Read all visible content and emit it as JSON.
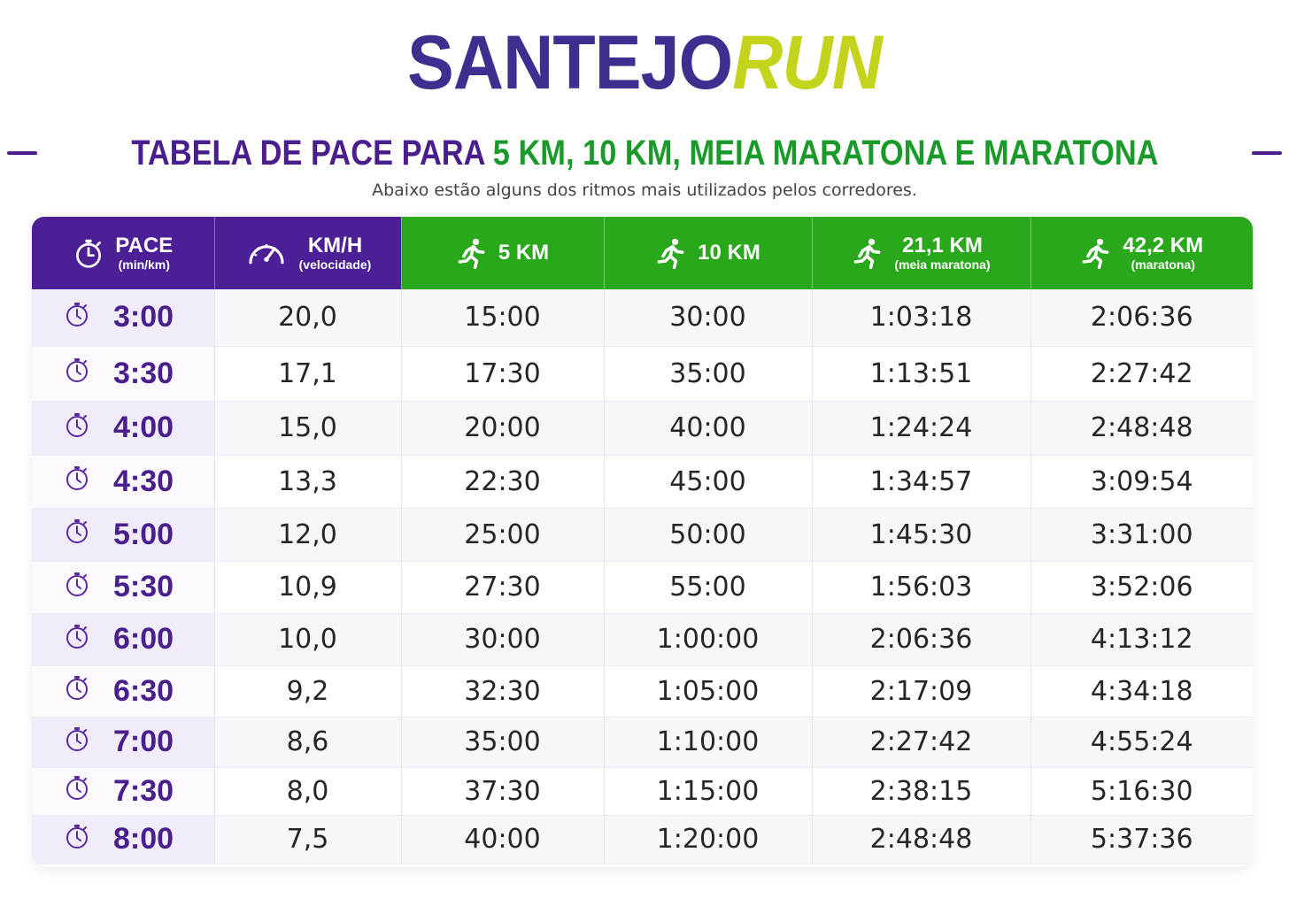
{
  "brand": {
    "part1": "SANTEJO",
    "part2": "RUN",
    "colors": {
      "primary": "#3d2e8f",
      "accent": "#c4d41c"
    }
  },
  "headline": {
    "part1": "TABELA DE PACE PARA ",
    "part2": "5 KM, 10 KM, MEIA MARATONA E MARATONA"
  },
  "subtitle": "Abaixo estão alguns dos ritmos mais utilizados pelos corredores.",
  "table": {
    "headers": [
      {
        "main": "PACE",
        "sub": "(min/km)",
        "icon": "stopwatch-icon"
      },
      {
        "main": "KM/H",
        "sub": "(velocidade)",
        "icon": "speedometer-icon"
      },
      {
        "main": "5 KM",
        "sub": "",
        "icon": "runner-icon"
      },
      {
        "main": "10 KM",
        "sub": "",
        "icon": "runner-icon"
      },
      {
        "main": "21,1 KM",
        "sub": "(meia maratona)",
        "icon": "runner-icon"
      },
      {
        "main": "42,2 KM",
        "sub": "(maratona)",
        "icon": "runner-icon"
      }
    ],
    "rows": [
      [
        "3:00",
        "20,0",
        "15:00",
        "30:00",
        "1:03:18",
        "2:06:36"
      ],
      [
        "3:30",
        "17,1",
        "17:30",
        "35:00",
        "1:13:51",
        "2:27:42"
      ],
      [
        "4:00",
        "15,0",
        "20:00",
        "40:00",
        "1:24:24",
        "2:48:48"
      ],
      [
        "4:30",
        "13,3",
        "22:30",
        "45:00",
        "1:34:57",
        "3:09:54"
      ],
      [
        "5:00",
        "12,0",
        "25:00",
        "50:00",
        "1:45:30",
        "3:31:00"
      ],
      [
        "5:30",
        "10,9",
        "27:30",
        "55:00",
        "1:56:03",
        "3:52:06"
      ],
      [
        "6:00",
        "10,0",
        "30:00",
        "1:00:00",
        "2:06:36",
        "4:13:12"
      ],
      [
        "6:30",
        "9,2",
        "32:30",
        "1:05:00",
        "2:17:09",
        "4:34:18"
      ],
      [
        "7:00",
        "8,6",
        "35:00",
        "1:10:00",
        "2:27:42",
        "4:55:24"
      ],
      [
        "7:30",
        "8,0",
        "37:30",
        "1:15:00",
        "2:38:15",
        "5:16:30"
      ],
      [
        "8:00",
        "7,5",
        "40:00",
        "1:20:00",
        "2:48:48",
        "5:37:36"
      ]
    ],
    "colors": {
      "header_purple": "#4d1f96",
      "header_green": "#2aa81c",
      "pace_text": "#4a1e8c"
    }
  }
}
